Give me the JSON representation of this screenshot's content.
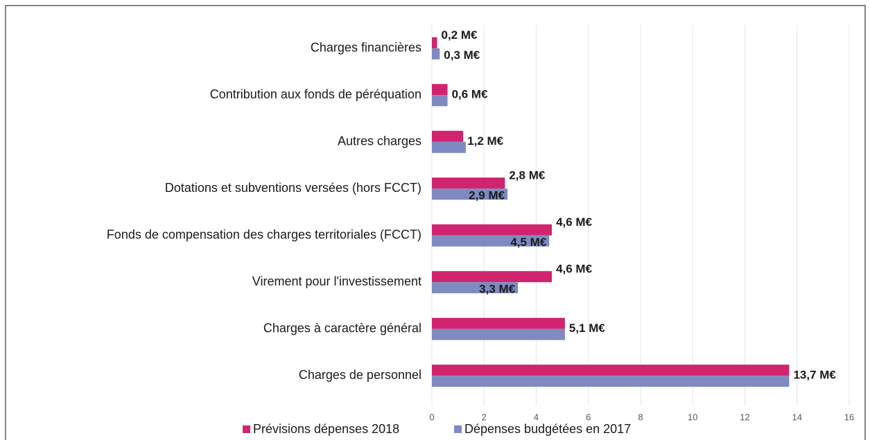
{
  "chart_data": {
    "type": "hbar",
    "categories": [
      "Charges financières",
      "Contribution aux fonds de péréquation",
      "Autres charges",
      "Dotations et subventions versées (hors FCCT)",
      "Fonds de compensation des charges territoriales (FCCT)",
      "Virement pour l'investissement",
      "Charges à caractère général",
      "Charges de personnel"
    ],
    "series": [
      {
        "name": "Prévisions dépenses 2018",
        "color": "#d0246e",
        "values": [
          0.2,
          0.6,
          1.2,
          2.8,
          4.6,
          4.6,
          5.1,
          13.7
        ],
        "value_labels": [
          "0,2 M€",
          "0,6 M€",
          "1,2 M€",
          "2,8 M€",
          "4,6 M€",
          "4,6 M€",
          "5,1 M€",
          "13,7 M€"
        ]
      },
      {
        "name": "Dépenses budgétées en 2017",
        "color": "#7f8ac0",
        "values": [
          0.3,
          0.6,
          1.3,
          2.9,
          4.5,
          3.3,
          5.1,
          13.7
        ],
        "value_labels": [
          "0,3 M€",
          null,
          null,
          "2,9 M€",
          "4,5 M€",
          "3,3 M€",
          null,
          null
        ]
      }
    ],
    "xlim": [
      0,
      16
    ],
    "xticks": [
      0,
      2,
      4,
      6,
      8,
      10,
      12,
      14,
      16
    ],
    "grid": true,
    "legend": "bottom"
  }
}
